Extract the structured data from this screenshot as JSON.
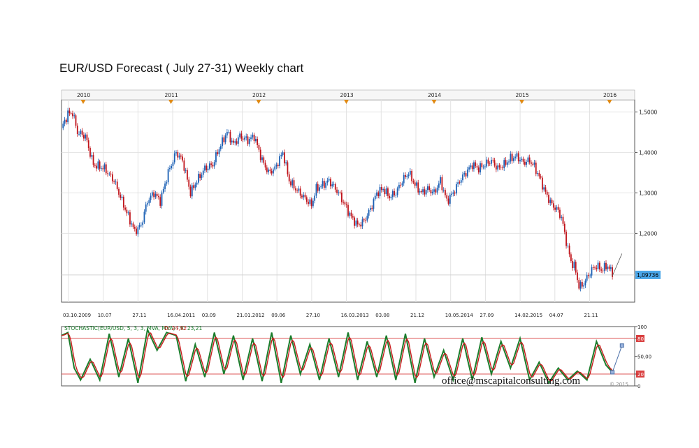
{
  "title": "EUR/USD Forecast ( July 27-31) Weekly chart",
  "colors": {
    "bull": "#1a5fb4",
    "bear": "#c0141b",
    "grid": "#e2e2e2",
    "k_line": "#1b7d2c",
    "d_line": "#c81e1e",
    "marker": "#e08a14",
    "last_price_bg": "#4aa6e8",
    "level_line": "#d21f1f"
  },
  "chart_data": [
    {
      "type": "candlestick",
      "symbol": "EUR/USD",
      "timeframe": "Weekly",
      "x_start": "03.10.2009",
      "x_end": "24.07.2015",
      "year_markers": [
        "2010",
        "2011",
        "2012",
        "2013",
        "2014",
        "2015",
        "2016"
      ],
      "x_tick_labels": [
        "03.10.2009",
        "10.07",
        "27.11",
        "16.04.2011",
        "03.09",
        "21.01.2012",
        "09.06",
        "27.10",
        "16.03.2013",
        "03.08",
        "21.12",
        "10.05.2014",
        "27.09",
        "14.02.2015",
        "04.07",
        "21.11"
      ],
      "y_ticks": [
        1.5,
        1.4,
        1.3,
        1.2
      ],
      "y_tick_labels": [
        "1,5000",
        "1,4000",
        "1,3000",
        "1,2000"
      ],
      "ylim": [
        1.03,
        1.53
      ],
      "last_price": 1.09736,
      "last_price_label": "1,09736",
      "closes_path": [
        [
          0,
          1.46
        ],
        [
          4,
          1.495
        ],
        [
          7,
          1.498
        ],
        [
          10,
          1.45
        ],
        [
          15,
          1.44
        ],
        [
          20,
          1.37
        ],
        [
          27,
          1.36
        ],
        [
          33,
          1.33
        ],
        [
          40,
          1.26
        ],
        [
          46,
          1.205
        ],
        [
          50,
          1.22
        ],
        [
          54,
          1.28
        ],
        [
          58,
          1.3
        ],
        [
          62,
          1.28
        ],
        [
          67,
          1.35
        ],
        [
          72,
          1.4
        ],
        [
          76,
          1.38
        ],
        [
          81,
          1.3
        ],
        [
          85,
          1.33
        ],
        [
          90,
          1.36
        ],
        [
          95,
          1.37
        ],
        [
          99,
          1.41
        ],
        [
          104,
          1.45
        ],
        [
          108,
          1.42
        ],
        [
          112,
          1.44
        ],
        [
          117,
          1.43
        ],
        [
          121,
          1.44
        ],
        [
          126,
          1.38
        ],
        [
          130,
          1.35
        ],
        [
          134,
          1.36
        ],
        [
          139,
          1.4
        ],
        [
          143,
          1.33
        ],
        [
          147,
          1.31
        ],
        [
          152,
          1.29
        ],
        [
          157,
          1.27
        ],
        [
          160,
          1.31
        ],
        [
          164,
          1.32
        ],
        [
          168,
          1.33
        ],
        [
          174,
          1.3
        ],
        [
          178,
          1.27
        ],
        [
          182,
          1.24
        ],
        [
          186,
          1.22
        ],
        [
          190,
          1.23
        ],
        [
          194,
          1.26
        ],
        [
          198,
          1.3
        ],
        [
          202,
          1.31
        ],
        [
          206,
          1.29
        ],
        [
          210,
          1.3
        ],
        [
          214,
          1.33
        ],
        [
          218,
          1.35
        ],
        [
          222,
          1.32
        ],
        [
          226,
          1.3
        ],
        [
          230,
          1.31
        ],
        [
          234,
          1.3
        ],
        [
          238,
          1.33
        ],
        [
          242,
          1.28
        ],
        [
          246,
          1.3
        ],
        [
          250,
          1.33
        ],
        [
          254,
          1.35
        ],
        [
          258,
          1.37
        ],
        [
          262,
          1.36
        ],
        [
          266,
          1.37
        ],
        [
          270,
          1.38
        ],
        [
          274,
          1.36
        ],
        [
          278,
          1.37
        ],
        [
          282,
          1.385
        ],
        [
          286,
          1.39
        ],
        [
          290,
          1.375
        ],
        [
          294,
          1.38
        ],
        [
          297,
          1.365
        ],
        [
          300,
          1.34
        ],
        [
          304,
          1.3
        ],
        [
          308,
          1.27
        ],
        [
          311,
          1.26
        ],
        [
          314,
          1.24
        ],
        [
          317,
          1.18
        ],
        [
          320,
          1.13
        ],
        [
          322,
          1.12
        ],
        [
          325,
          1.07
        ],
        [
          327,
          1.07
        ],
        [
          330,
          1.09
        ],
        [
          333,
          1.11
        ],
        [
          336,
          1.12
        ],
        [
          339,
          1.11
        ],
        [
          343,
          1.12
        ],
        [
          346,
          1.1
        ]
      ],
      "forecast_path": [
        [
          346,
          1.095
        ],
        [
          352,
          1.15
        ]
      ]
    },
    {
      "type": "line",
      "title": "STOCHASTIC(EUR/USD, 5, 3, 3, MVA, MVA) - K: 23,21 D: 24,92",
      "ylim": [
        0,
        100
      ],
      "y_ticks": [
        100,
        80,
        50,
        20,
        0
      ],
      "y_tick_labels": [
        "100",
        "80",
        "50,00",
        "20",
        "0"
      ],
      "levels": [
        80,
        20
      ],
      "k_label": "K: 23,21",
      "d_label": "D: 24,92",
      "k_last": 23.21,
      "d_last": 24.92,
      "k_path": [
        [
          0,
          85
        ],
        [
          4,
          90
        ],
        [
          8,
          30
        ],
        [
          12,
          10
        ],
        [
          18,
          45
        ],
        [
          24,
          10
        ],
        [
          30,
          88
        ],
        [
          36,
          15
        ],
        [
          42,
          80
        ],
        [
          48,
          5
        ],
        [
          54,
          95
        ],
        [
          60,
          60
        ],
        [
          66,
          90
        ],
        [
          72,
          85
        ],
        [
          78,
          8
        ],
        [
          84,
          70
        ],
        [
          90,
          15
        ],
        [
          96,
          90
        ],
        [
          102,
          20
        ],
        [
          108,
          85
        ],
        [
          114,
          10
        ],
        [
          120,
          80
        ],
        [
          126,
          8
        ],
        [
          132,
          90
        ],
        [
          138,
          5
        ],
        [
          144,
          85
        ],
        [
          150,
          20
        ],
        [
          156,
          70
        ],
        [
          162,
          10
        ],
        [
          168,
          80
        ],
        [
          174,
          15
        ],
        [
          180,
          90
        ],
        [
          186,
          10
        ],
        [
          192,
          75
        ],
        [
          198,
          15
        ],
        [
          204,
          85
        ],
        [
          210,
          10
        ],
        [
          216,
          88
        ],
        [
          222,
          5
        ],
        [
          228,
          80
        ],
        [
          234,
          15
        ],
        [
          240,
          60
        ],
        [
          246,
          10
        ],
        [
          252,
          80
        ],
        [
          258,
          10
        ],
        [
          264,
          82
        ],
        [
          270,
          20
        ],
        [
          276,
          75
        ],
        [
          282,
          30
        ],
        [
          288,
          80
        ],
        [
          294,
          10
        ],
        [
          300,
          40
        ],
        [
          306,
          5
        ],
        [
          312,
          30
        ],
        [
          318,
          10
        ],
        [
          324,
          25
        ],
        [
          330,
          10
        ],
        [
          336,
          75
        ],
        [
          342,
          35
        ],
        [
          346,
          23
        ]
      ],
      "forecast_path": [
        [
          346,
          23
        ],
        [
          352,
          68
        ]
      ]
    }
  ],
  "watermark": "office@mscapitalconsulting.com",
  "copyright": "© 2015"
}
